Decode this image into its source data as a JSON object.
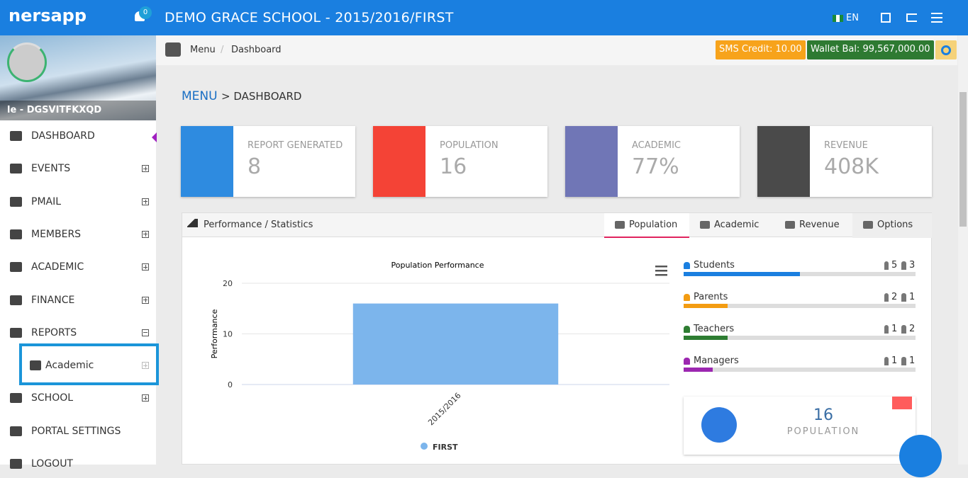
{
  "header": {
    "brand": "nersapp",
    "notifications": "0",
    "title": "DEMO GRACE SCHOOL - 2015/2016/FIRST",
    "language": "EN"
  },
  "user": {
    "name": "le - DGSVITFKXQD"
  },
  "sidebar": {
    "items": [
      {
        "label": "DASHBOARD"
      },
      {
        "label": "EVENTS"
      },
      {
        "label": "PMAIL"
      },
      {
        "label": "MEMBERS"
      },
      {
        "label": "ACADEMIC"
      },
      {
        "label": "FINANCE"
      },
      {
        "label": "REPORTS",
        "children": [
          "Academic"
        ]
      },
      {
        "label": "SCHOOL"
      },
      {
        "label": "PORTAL SETTINGS"
      },
      {
        "label": "LOGOUT"
      }
    ]
  },
  "breadcrumb": [
    "Menu",
    "Dashboard"
  ],
  "balances": {
    "sms_credit": "SMS Credit: 10.00",
    "wallet": "Wallet Bal: 99,567,000.00"
  },
  "page_title": {
    "menu": "MENU",
    "current": "> DASHBOARD"
  },
  "stats": [
    {
      "label": "REPORT GENERATED",
      "value": "8"
    },
    {
      "label": "POPULATION",
      "value": "16"
    },
    {
      "label": "ACADEMIC",
      "value": "77%"
    },
    {
      "label": "REVENUE",
      "value": "408K"
    }
  ],
  "panel": {
    "title": "Performance / Statistics",
    "tabs": [
      "Population",
      "Academic",
      "Revenue",
      "Options"
    ]
  },
  "chart_data": {
    "type": "bar",
    "title": "Population Performance",
    "y_label": "Performance",
    "categories": [
      "2015/2016"
    ],
    "series": [
      {
        "name": "FIRST",
        "color": "#7cb5ec",
        "values": [
          16
        ]
      }
    ],
    "ylim": [
      0,
      20
    ],
    "yticks": [
      0,
      10,
      20
    ]
  },
  "breakdown": [
    {
      "label": "Students",
      "male": 5,
      "female": 3,
      "percent": 50,
      "color": "#1a7fe0"
    },
    {
      "label": "Parents",
      "male": 2,
      "female": 1,
      "percent": 19,
      "color": "#f39c12"
    },
    {
      "label": "Teachers",
      "male": 1,
      "female": 2,
      "percent": 19,
      "color": "#2e7d32"
    },
    {
      "label": "Managers",
      "male": 1,
      "female": 1,
      "percent": 12.5,
      "color": "#9c27b0"
    }
  ],
  "summary": {
    "value": "16",
    "label": "POPULATION"
  }
}
